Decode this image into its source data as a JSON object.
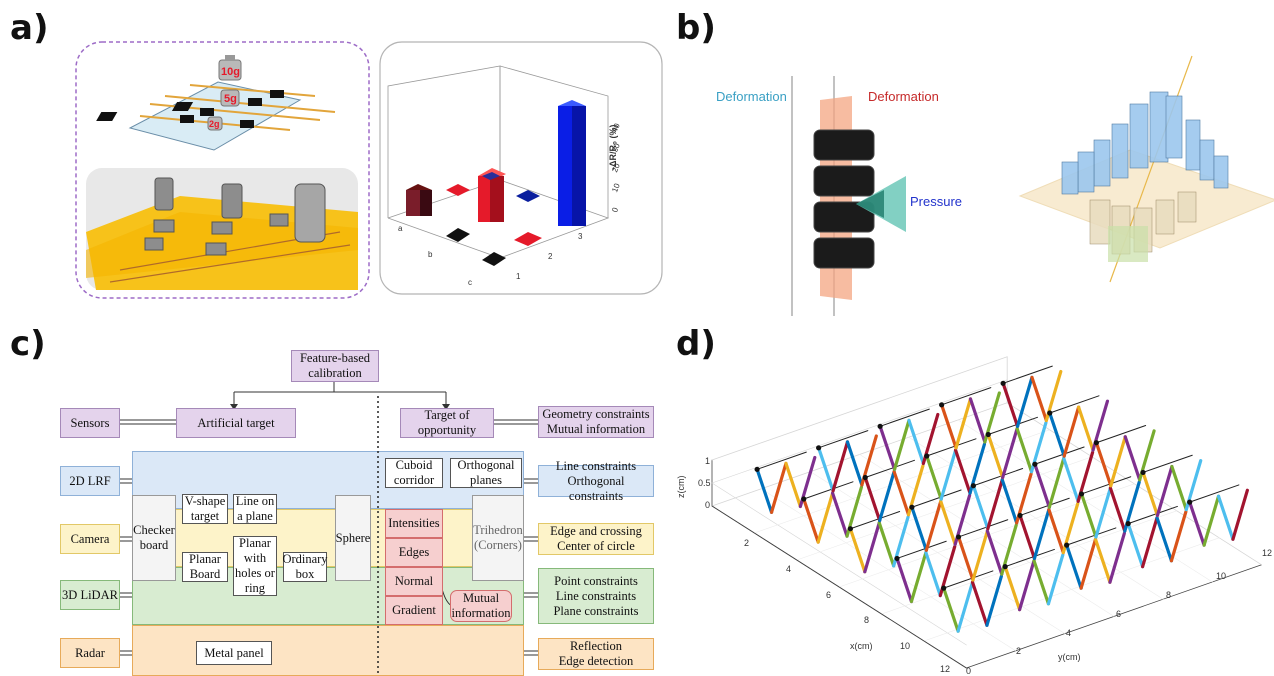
{
  "panels": {
    "a": "a)",
    "b": "b)",
    "c": "c)",
    "d": "d)"
  },
  "panel_a": {
    "weights": [
      "10g",
      "5g",
      "2g"
    ],
    "chart3d": {
      "zlabel": "-ΔR/R₀ (%)",
      "zticks": [
        "0",
        "10",
        "20",
        "30",
        "40"
      ],
      "xticks": [
        "a",
        "b",
        "c"
      ],
      "yticks": [
        "1",
        "2",
        "3"
      ]
    }
  },
  "panel_b": {
    "deformation_left": "Deformation",
    "deformation_right": "Deformation",
    "pressure": "Pressure"
  },
  "panel_c": {
    "root": "Feature-based\ncalibration",
    "sensors": "Sensors",
    "artificial_target": "Artificial target",
    "target_of_opportunity": "Target of\nopportunity",
    "geometry_constraints": "Geometry constraints\nMutual information",
    "rows": [
      "2D LRF",
      "Camera",
      "3D LiDAR",
      "Radar"
    ],
    "right_boxes": [
      "Line constraints\nOrthogonal constraints",
      "Edge and crossing\nCenter of circle",
      "Point constraints\nLine constraints\nPlane constraints",
      "Reflection\nEdge detection"
    ],
    "artificial": {
      "checker": "Checker\nboard",
      "vshape": "V-shape\ntarget",
      "line_plane": "Line on\na plane",
      "planar_board": "Planar\nBoard",
      "planar_holes": "Planar\nwith\nholes or\nring",
      "ordinary_box": "Ordinary\nbox",
      "sphere": "Sphere",
      "metal_panel": "Metal panel"
    },
    "opportunity": {
      "cuboid": "Cuboid\ncorridor",
      "orthogonal": "Orthogonal\nplanes",
      "intensities": "Intensities",
      "edges": "Edges",
      "normal": "Normal",
      "gradient": "Gradient",
      "trihedron": "Trihedron\n(Corners)",
      "mutual": "Mutual\ninformation"
    }
  },
  "chart_data": {
    "type": "3d-line",
    "zlabel": "z(cm)",
    "xlabel": "x(cm)",
    "ylabel": "y(cm)",
    "zticks": [
      "0",
      "0.5",
      "1"
    ],
    "xticks": [
      "2",
      "4",
      "6",
      "8",
      "10",
      "12"
    ],
    "yticks": [
      "0",
      "2",
      "4",
      "6",
      "8",
      "10",
      "12"
    ],
    "zlim": [
      0,
      1
    ],
    "xlim": [
      0,
      12
    ],
    "ylim": [
      0,
      12
    ]
  },
  "colors": {
    "panel_a_frame": "#9d6cc7",
    "blue_bar": "#0a1ee6",
    "red_bar": "#e51a2a",
    "pressure": "#2233cc",
    "deformation_left": "#3aa0c4",
    "deformation_right": "#c62a2a",
    "zigzag": [
      "#0072BD",
      "#D95319",
      "#EDB120",
      "#7E2F8E",
      "#77AC30",
      "#4DBEEE",
      "#A2142F"
    ]
  }
}
